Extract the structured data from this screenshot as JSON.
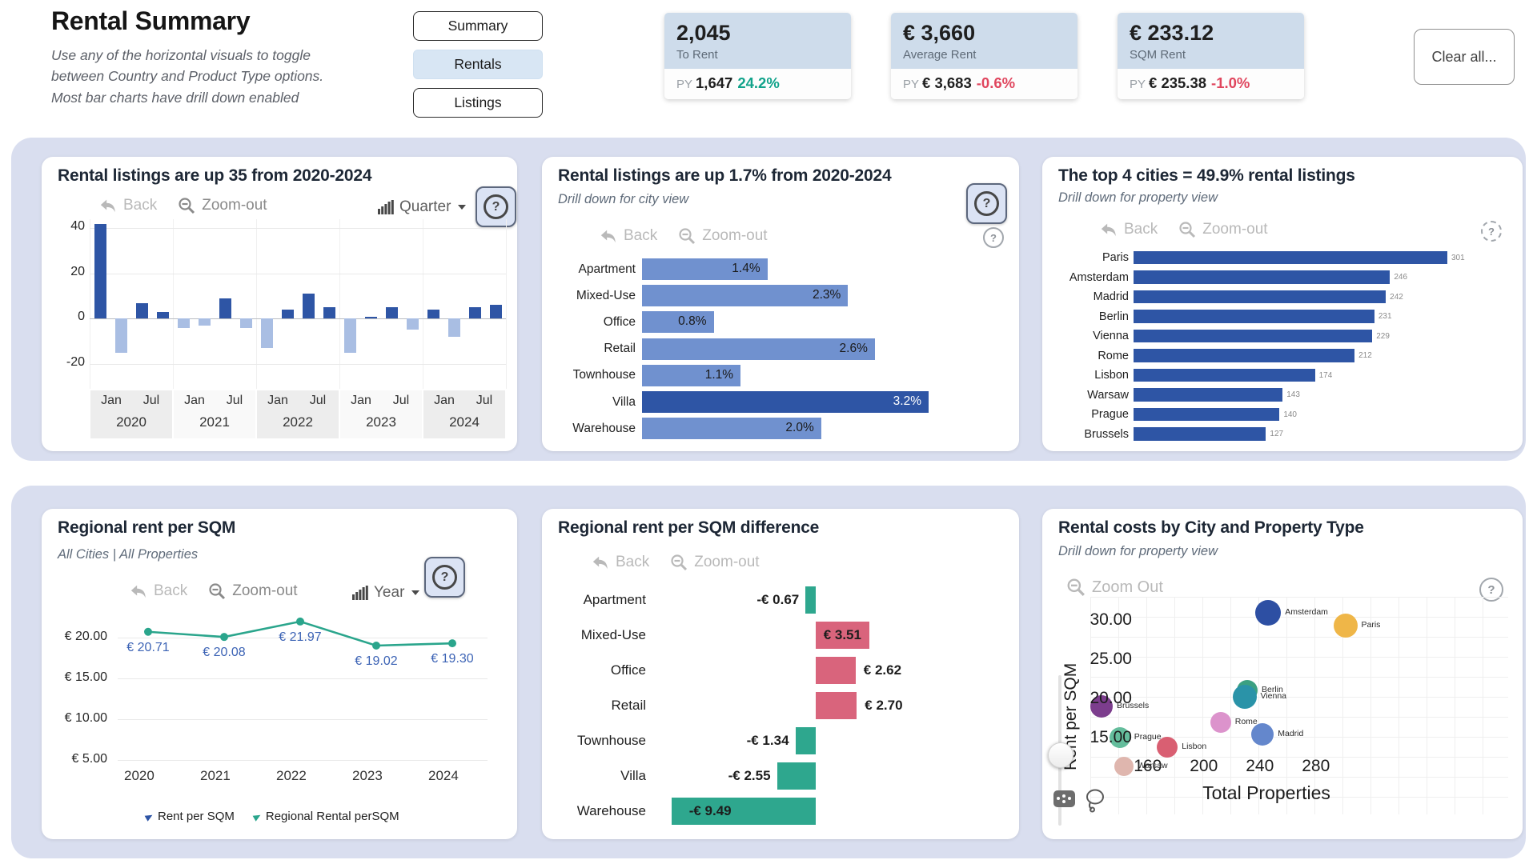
{
  "header": {
    "title": "Rental Summary",
    "subtitle_lines": [
      "Use any of the horizontal  visuals to toggle",
      "between Country and Product Type options.",
      "Most  bar charts have drill down enabled"
    ],
    "nav_buttons": [
      {
        "label": "Summary",
        "active": false
      },
      {
        "label": "Rentals",
        "active": true
      },
      {
        "label": "Listings",
        "active": false
      }
    ],
    "clear_button": "Clear all...",
    "kpis": [
      {
        "value": "2,045",
        "label": "To Rent",
        "py_prefix": "PY",
        "py_value": "1,647",
        "delta": "24.2%",
        "delta_color": "#12a38b"
      },
      {
        "value": "€ 3,660",
        "label": "Average Rent",
        "py_prefix": "PY",
        "py_value": "€ 3,683",
        "delta": "-0.6%",
        "delta_color": "#e0465e"
      },
      {
        "value": "€ 233.12",
        "label": "SQM Rent",
        "py_prefix": "PY",
        "py_value": "€ 235.38",
        "delta": "-1.0%",
        "delta_color": "#e0465e"
      }
    ]
  },
  "toolbar": {
    "back": "Back",
    "zoom_out": "Zoom-out",
    "zoom_out_scatter": "Zoom Out",
    "quarter": "Quarter",
    "year": "Year",
    "help": "?"
  },
  "chart_data": [
    {
      "id": "quarterly_listings_change",
      "type": "bar",
      "title": "Rental listings are up 35 from 2020-2024",
      "xlabel": "Quarter",
      "years": [
        "2020",
        "2021",
        "2022",
        "2023",
        "2024"
      ],
      "half_year_ticks": [
        "Jan",
        "Jul"
      ],
      "values": [
        42,
        -15,
        7,
        3,
        -4,
        -3,
        9,
        -4,
        -13,
        4,
        11,
        5,
        -15,
        1,
        5,
        -5,
        4,
        -8,
        5,
        6
      ],
      "ylim": [
        -31,
        44
      ],
      "yticks": [
        40,
        20,
        0,
        -20
      ],
      "positive_color": "#2e55a5",
      "negative_color": "#a9bee3"
    },
    {
      "id": "listings_change_by_property",
      "type": "bar",
      "title": "Rental listings are up 1.7% from 2020-2024",
      "subtitle": "Drill down for city view",
      "categories": [
        "Apartment",
        "Mixed-Use",
        "Office",
        "Retail",
        "Townhouse",
        "Villa",
        "Warehouse"
      ],
      "values": [
        1.4,
        2.3,
        0.8,
        2.6,
        1.1,
        3.2,
        2.0
      ],
      "labels": [
        "1.4%",
        "2.3%",
        "0.8%",
        "2.6%",
        "1.1%",
        "3.2%",
        "2.0%"
      ],
      "highlight_index": 5,
      "xmax": 3.2,
      "bar_color": "#7091cf",
      "highlight_color": "#2e55a5"
    },
    {
      "id": "top_cities_listings",
      "type": "bar",
      "title": "The top 4 cities = 49.9% rental listings",
      "subtitle": "Drill down for property view",
      "categories": [
        "Paris",
        "Amsterdam",
        "Madrid",
        "Berlin",
        "Vienna",
        "Rome",
        "Lisbon",
        "Warsaw",
        "Prague",
        "Brussels"
      ],
      "values": [
        301,
        246,
        242,
        231,
        229,
        212,
        174,
        143,
        140,
        127
      ],
      "xmax": 301,
      "bar_color": "#2e55a5"
    },
    {
      "id": "regional_rent_per_sqm",
      "type": "line",
      "title": "Regional rent per SQM",
      "subtitle": "All Cities | All Properties",
      "x": [
        "2020",
        "2021",
        "2022",
        "2023",
        "2024"
      ],
      "series": [
        {
          "name": "Rent per SQM",
          "color": "#2e55a5"
        },
        {
          "name": "Regional Rental perSQM",
          "color": "#2aa58c",
          "values": [
            20.71,
            20.08,
            21.97,
            19.02,
            19.3
          ]
        }
      ],
      "point_labels": [
        "€ 20.71",
        "€ 20.08",
        "€ 21.97",
        "€ 19.02",
        "€ 19.30"
      ],
      "yticks": [
        20,
        15,
        10,
        5
      ],
      "ytick_labels": [
        "€ 20.00",
        "€ 15.00",
        "€ 10.00",
        "€ 5.00"
      ],
      "ylim": [
        3.5,
        23.5
      ],
      "label_color": "#3c63b5"
    },
    {
      "id": "regional_rent_difference",
      "type": "bar",
      "title": "Regional rent per SQM difference",
      "categories": [
        "Apartment",
        "Mixed-Use",
        "Office",
        "Retail",
        "Townhouse",
        "Villa",
        "Warehouse"
      ],
      "values": [
        -0.67,
        3.51,
        2.62,
        2.7,
        -1.34,
        -2.55,
        -9.49
      ],
      "labels": [
        "-€ 0.67",
        "€ 3.51",
        "€ 2.62",
        "€ 2.70",
        "-€ 1.34",
        "-€ 2.55",
        "-€ 9.49"
      ],
      "label_pos": [
        "left",
        "inside",
        "right",
        "right",
        "left",
        "left",
        "inside-left"
      ],
      "positive_color": "#d9647c",
      "negative_color": "#2ea78e"
    },
    {
      "id": "rental_costs_city_scatter",
      "type": "scatter",
      "title": "Rental costs by City and Property Type",
      "subtitle": "Drill down for property view",
      "xlabel": "Total Properties",
      "ylabel": "Rent per SQM",
      "xticks": [
        160,
        200,
        240,
        280
      ],
      "yticks": [
        30,
        25,
        20,
        15
      ],
      "ytick_labels": [
        "30.00",
        "25.00",
        "20.00",
        "15.00"
      ],
      "xlim": [
        119,
        416
      ],
      "ylim": [
        5,
        32
      ],
      "points": [
        {
          "city": "Amsterdam",
          "x": 246,
          "y": 30.9,
          "r": 16,
          "color": "#2d4fa3"
        },
        {
          "city": "Paris",
          "x": 301,
          "y": 29.3,
          "r": 15,
          "color": "#efb648"
        },
        {
          "city": "Berlin",
          "x": 231,
          "y": 21.0,
          "r": 13,
          "color": "#3ba081"
        },
        {
          "city": "Vienna",
          "x": 229,
          "y": 20.2,
          "r": 15,
          "color": "#2a93a8"
        },
        {
          "city": "Brussels",
          "x": 127,
          "y": 19.0,
          "r": 14,
          "color": "#7c3d8d"
        },
        {
          "city": "Rome",
          "x": 212,
          "y": 16.9,
          "r": 13,
          "color": "#dc93cc"
        },
        {
          "city": "Madrid",
          "x": 242,
          "y": 15.4,
          "r": 14,
          "color": "#6487cc"
        },
        {
          "city": "Prague",
          "x": 140,
          "y": 15.0,
          "r": 13,
          "color": "#64bd9c"
        },
        {
          "city": "Lisbon",
          "x": 174,
          "y": 13.8,
          "r": 13,
          "color": "#d95f72"
        },
        {
          "city": "Warsaw",
          "x": 143,
          "y": 11.3,
          "r": 12,
          "color": "#dfb6ae"
        }
      ]
    }
  ]
}
